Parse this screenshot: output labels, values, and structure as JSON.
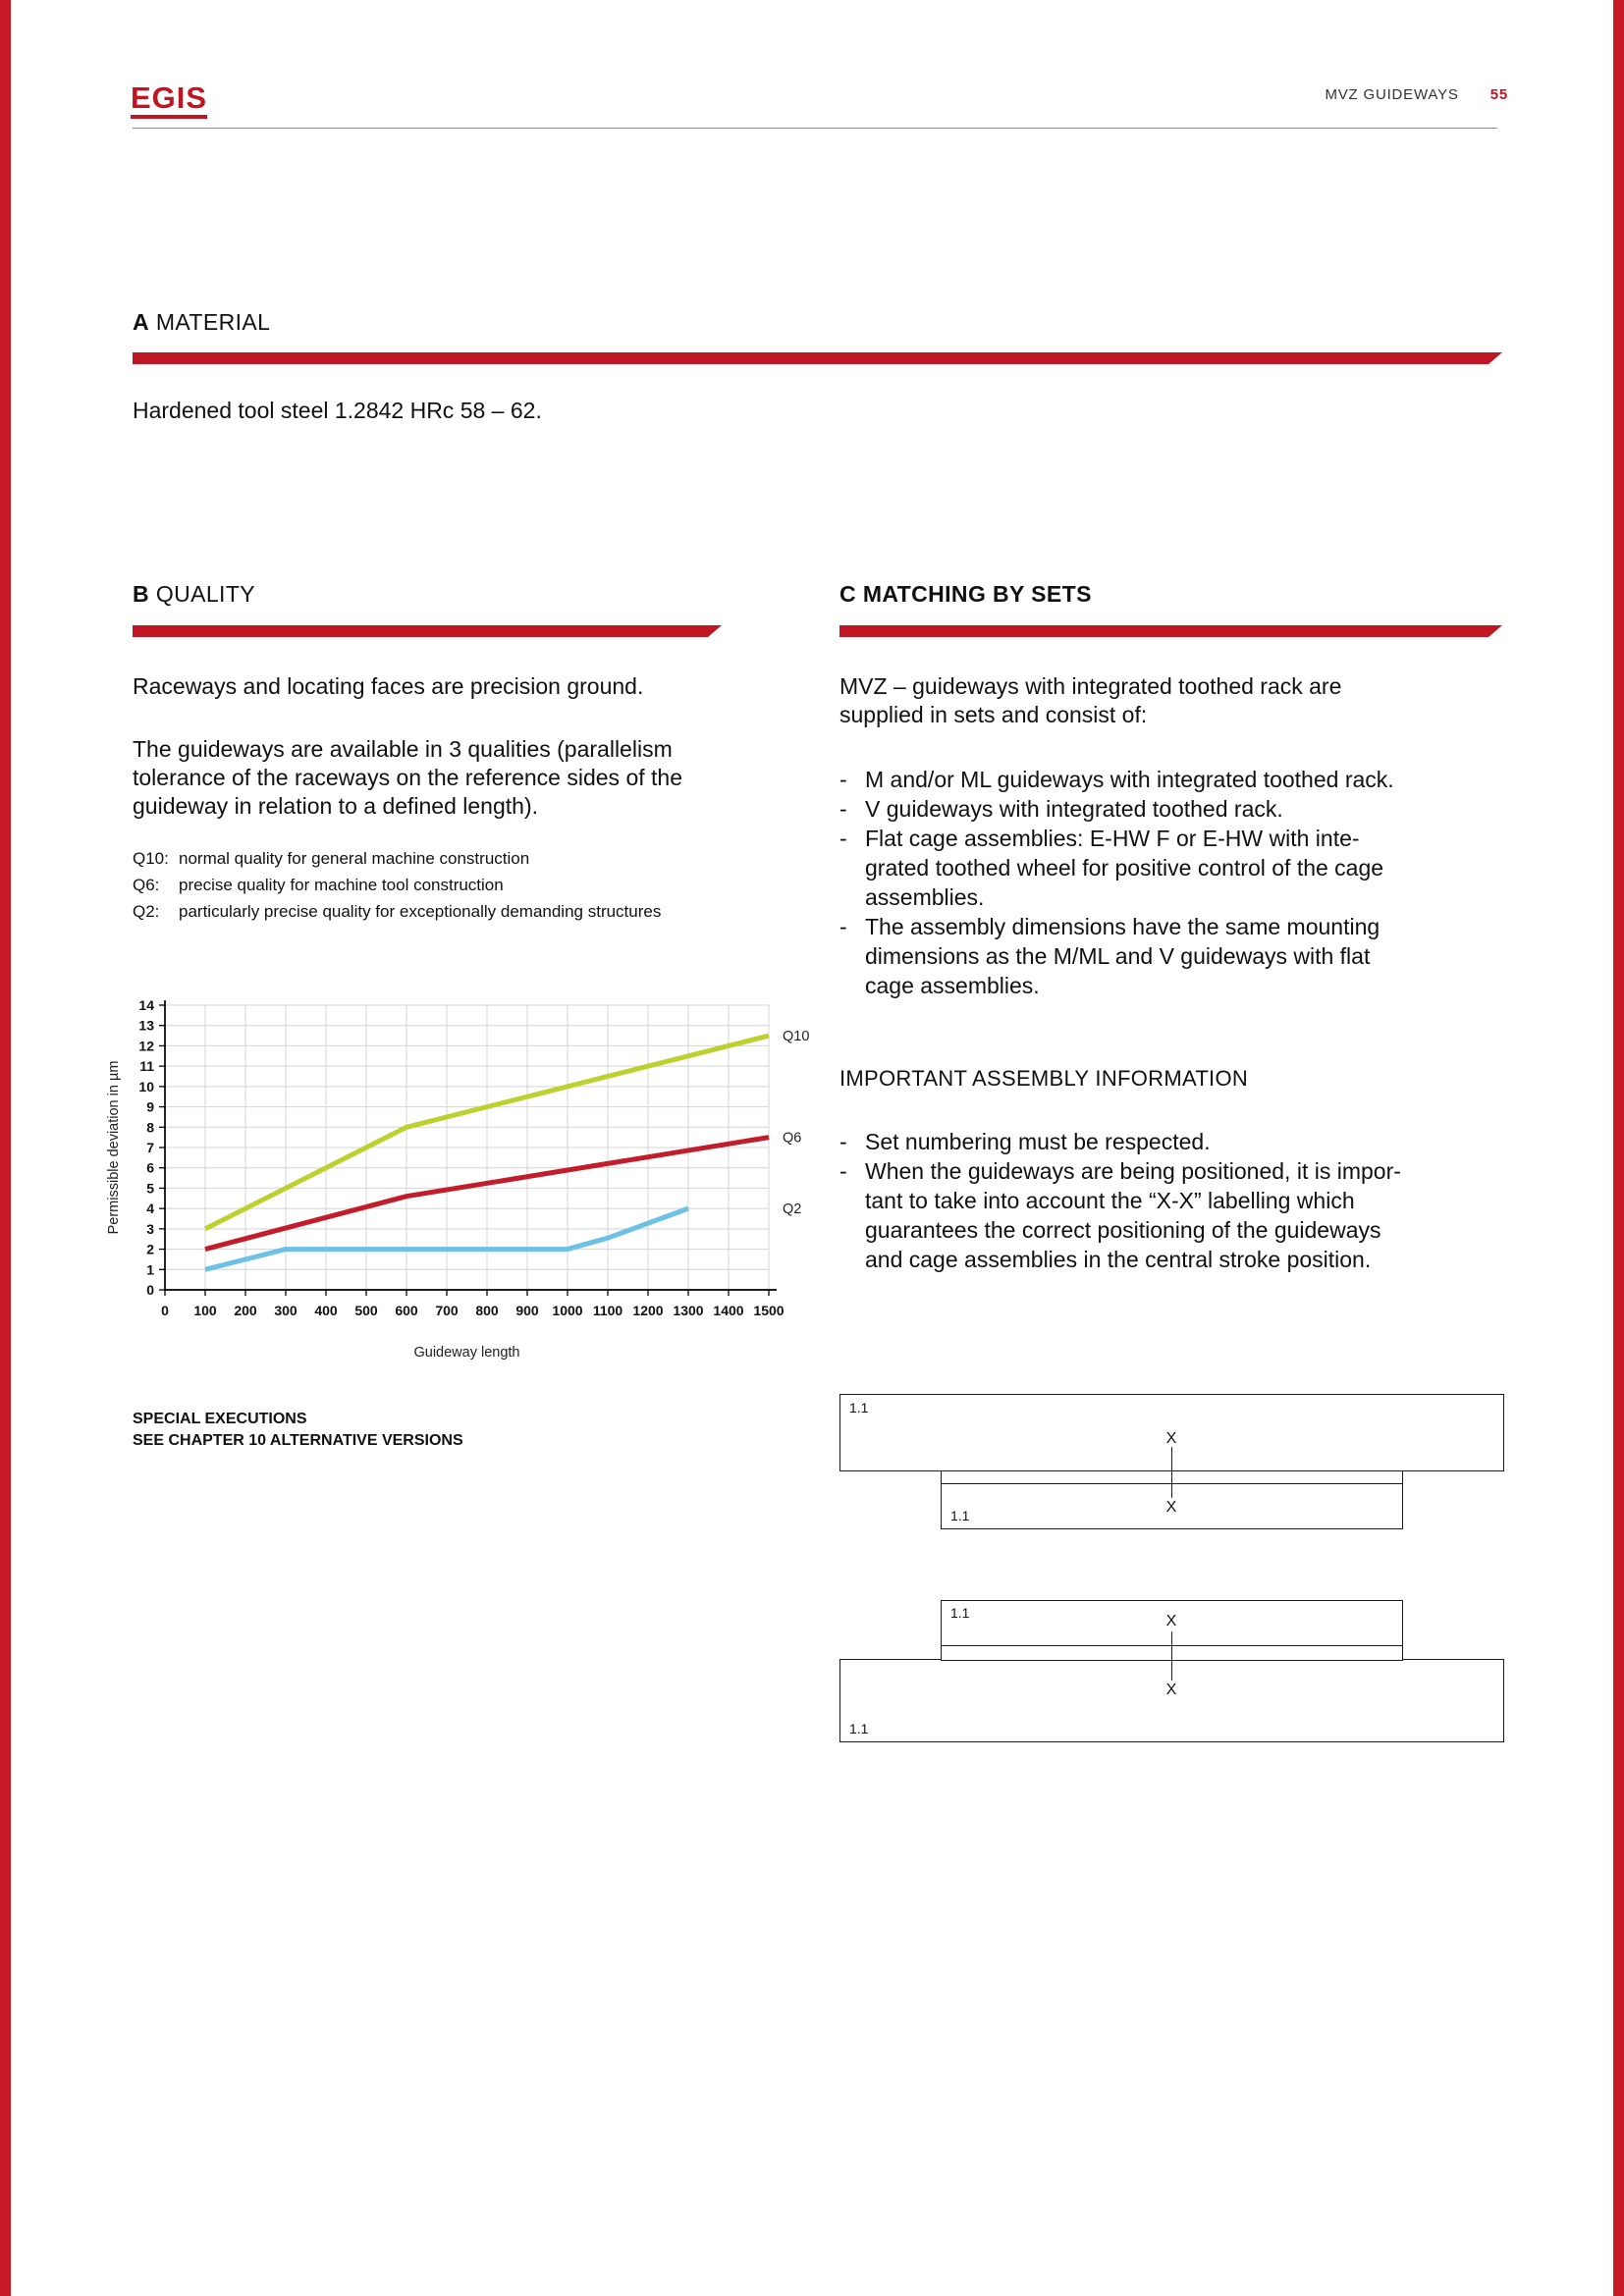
{
  "page": {
    "logo": "EGIS",
    "header_title": "MVZ GUIDEWAYS",
    "page_number": "55"
  },
  "ui": {
    "bullet_marker": "-"
  },
  "colors": {
    "brand_red": "#be1622",
    "edge_red": "#c61a27",
    "q10_green": "#bdd02d",
    "q6_red": "#c31c2b",
    "q2_blue": "#6cc1e6"
  },
  "sections": {
    "a": {
      "letter": "A",
      "title": "MATERIAL",
      "body": "Hardened tool steel 1.2842 HRc 58 – 62."
    },
    "b": {
      "letter": "B",
      "title": "QUALITY",
      "para1": "Raceways and locating faces are precision ground.",
      "para2": "The guideways are available in 3 qualities (parallelism\ntolerance of the raceways on the reference sides of the\nguideway in relation to a defined length).",
      "qualities": [
        {
          "label": "Q10:",
          "text": "normal quality for general machine construction"
        },
        {
          "label": "Q6:",
          "text": "precise quality for machine tool construction"
        },
        {
          "label": "Q2:",
          "text": "particularly precise quality for exceptionally demanding structures"
        }
      ],
      "special_line1": "SPECIAL EXECUTIONS",
      "special_line2": "SEE CHAPTER 10 ALTERNATIVE VERSIONS"
    },
    "c": {
      "letter": "C",
      "title": "MATCHING BY SETS",
      "intro": "MVZ – guideways with integrated toothed rack are\nsupplied in sets and consist of:",
      "bullets": [
        "M and/or ML guideways with integrated toothed rack.",
        "V guideways with integrated toothed rack.",
        "Flat cage assemblies: E-HW F or E-HW with inte-\ngrated toothed wheel for positive control of the cage\nassemblies.",
        "The assembly dimensions have the same mounting\ndimensions as the M/ML and V guideways with flat\ncage assemblies."
      ],
      "assembly_title": "IMPORTANT ASSEMBLY INFORMATION",
      "assembly_bullets": [
        "Set numbering must be respected.",
        "When the guideways are being positioned, it is impor-\ntant to take into account the “X-X” labelling which\nguarantees the correct positioning of the guideways\nand cage assemblies in the central stroke position."
      ]
    }
  },
  "chart_data": {
    "type": "line",
    "title": "",
    "xlabel": "Guideway length",
    "ylabel": "Permissible deviation in µm",
    "xlim": [
      0,
      1500
    ],
    "ylim": [
      0,
      14
    ],
    "xtick_step": 100,
    "ytick_step": 1,
    "grid": true,
    "legend_position": "right-of-line-ends",
    "series": [
      {
        "name": "Q10",
        "color": "#bdd02d",
        "points": [
          [
            100,
            3
          ],
          [
            600,
            8
          ],
          [
            1500,
            12.5
          ]
        ]
      },
      {
        "name": "Q6",
        "color": "#c31c2b",
        "points": [
          [
            100,
            2
          ],
          [
            600,
            4.6
          ],
          [
            1500,
            7.5
          ]
        ]
      },
      {
        "name": "Q2",
        "color": "#6cc1e6",
        "points": [
          [
            100,
            1
          ],
          [
            300,
            2
          ],
          [
            1000,
            2
          ],
          [
            1100,
            2.55
          ],
          [
            1300,
            4
          ]
        ]
      }
    ]
  },
  "diagrams": {
    "set_label": "1.1",
    "section_marker": "X"
  }
}
